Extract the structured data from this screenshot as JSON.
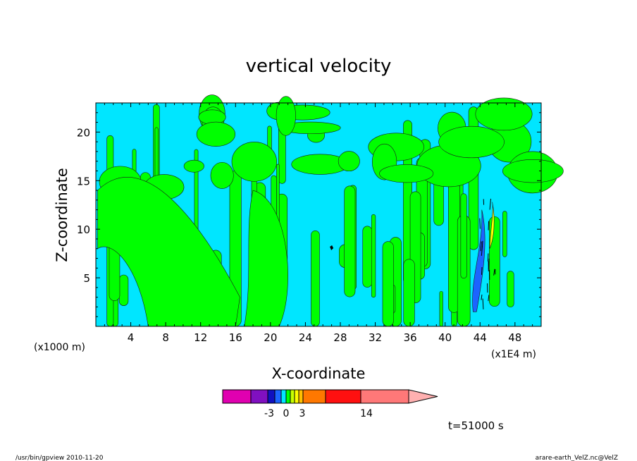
{
  "chart_data": {
    "type": "heatmap",
    "subtype": "filled-contour",
    "title": "vertical velocity",
    "xlabel": "X-coordinate",
    "ylabel": "Z-coordinate",
    "x_unit_left": "(x1000 m)",
    "x_unit_right": "(x1E4 m)",
    "x_ticks": [
      4,
      8,
      12,
      16,
      20,
      24,
      28,
      32,
      36,
      40,
      44,
      48
    ],
    "y_ticks": [
      5,
      10,
      15,
      20
    ],
    "xlim": [
      0,
      51
    ],
    "ylim": [
      0,
      23
    ],
    "time_label": "t=51000 s",
    "footer_left": "/usr/bin/gpview   2010-11-20",
    "footer_right": "arare-earth_VelZ.nc@VelZ",
    "colorbar": {
      "tick_labels": [
        "-3",
        "0",
        "3",
        "14"
      ],
      "colors": [
        "#e000b0",
        "#8010c0",
        "#1010c0",
        "#1c64ff",
        "#00e6ff",
        "#00ff00",
        "#c8ff00",
        "#ffff00",
        "#ffc000",
        "#ff7800",
        "#ff1010",
        "#ff7878",
        "#ffb0b0"
      ]
    },
    "dominant_levels": {
      "background": "#00e6ff",
      "updraft": "#00ff00",
      "downdraft": "#1c64ff",
      "strong_updraft": "#ffff00"
    }
  }
}
